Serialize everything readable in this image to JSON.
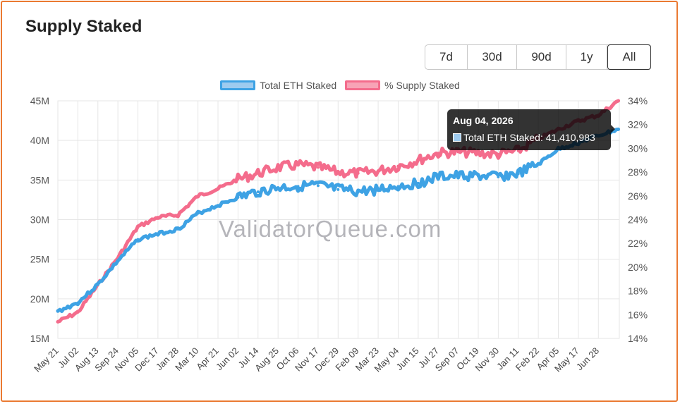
{
  "title": "Supply Staked",
  "range_buttons": [
    {
      "label": "7d",
      "active": false
    },
    {
      "label": "30d",
      "active": false
    },
    {
      "label": "90d",
      "active": false
    },
    {
      "label": "1y",
      "active": false
    },
    {
      "label": "All",
      "active": true
    }
  ],
  "watermark": "ValidatorQueue.com",
  "tooltip": {
    "date": "Aug 04, 2026",
    "series_label": "Total ETH Staked",
    "value": "41,410,983",
    "text": "Total ETH Staked: 41,410,983"
  },
  "colors": {
    "eth_line": "#3ea2e4",
    "eth_fill": "#9ecbef",
    "pct_line": "#f46c8c",
    "pct_fill": "#f7a3b6",
    "grid": "#e6e6e6"
  },
  "chart_data": {
    "type": "line",
    "title": "Supply Staked",
    "x_tick_labels": [
      "May 21",
      "Jul 02",
      "Aug 13",
      "Sep 24",
      "Nov 05",
      "Dec 17",
      "Jan 28",
      "Mar 10",
      "Apr 21",
      "Jun 02",
      "Jul 14",
      "Aug 25",
      "Oct 06",
      "Nov 17",
      "Dec 29",
      "Feb 09",
      "Mar 23",
      "May 04",
      "Jun 15",
      "Jul 27",
      "Sep 07",
      "Oct 19",
      "Nov 30",
      "Jan 11",
      "Feb 22",
      "Apr 05",
      "May 17",
      "Jun 28"
    ],
    "y_left": {
      "ticks": [
        "15M",
        "20M",
        "25M",
        "30M",
        "35M",
        "40M",
        "45M"
      ],
      "tick_values": [
        15,
        20,
        25,
        30,
        35,
        40,
        45
      ],
      "range": [
        15,
        45
      ],
      "unit": "M"
    },
    "y_right": {
      "ticks": [
        "14%",
        "16%",
        "18%",
        "20%",
        "22%",
        "24%",
        "26%",
        "28%",
        "30%",
        "32%",
        "34%"
      ],
      "tick_values": [
        14,
        16,
        18,
        20,
        22,
        24,
        26,
        28,
        30,
        32,
        34
      ],
      "range": [
        14,
        34
      ],
      "unit": "%"
    },
    "legend": {
      "position": "top",
      "items": [
        "Total ETH Staked",
        "% Supply Staked"
      ]
    },
    "grid": true,
    "series": [
      {
        "name": "Total ETH Staked",
        "axis": "left",
        "x_index": [
          0,
          1,
          2,
          3,
          4,
          5,
          6,
          7,
          8,
          9,
          10,
          11,
          12,
          13,
          14,
          15,
          16,
          17,
          18,
          19,
          20,
          21,
          22,
          23,
          24,
          25,
          26,
          27,
          28
        ],
        "values": [
          18.4,
          19.5,
          21.8,
          24.8,
          27.5,
          28.2,
          28.8,
          30.8,
          31.8,
          32.8,
          33.5,
          34.0,
          34.2,
          34.3,
          33.8,
          33.5,
          33.8,
          34.2,
          34.6,
          35.4,
          35.5,
          35.5,
          35.4,
          35.8,
          37.0,
          38.9,
          39.7,
          40.6,
          41.4
        ]
      },
      {
        "name": "% Supply Staked",
        "axis": "right",
        "x_index": [
          0,
          1,
          2,
          3,
          4,
          5,
          6,
          7,
          8,
          9,
          10,
          11,
          12,
          13,
          14,
          15,
          16,
          17,
          18,
          19,
          20,
          21,
          22,
          23,
          24,
          25,
          26,
          27,
          28
        ],
        "values": [
          15.4,
          16.2,
          18.5,
          20.8,
          23.4,
          24.2,
          24.4,
          26.0,
          26.6,
          27.4,
          27.9,
          28.4,
          28.6,
          28.4,
          28.0,
          27.9,
          28.1,
          28.5,
          29.0,
          29.6,
          29.7,
          29.6,
          29.5,
          29.8,
          30.8,
          31.6,
          32.3,
          32.8,
          34.0
        ]
      }
    ]
  }
}
